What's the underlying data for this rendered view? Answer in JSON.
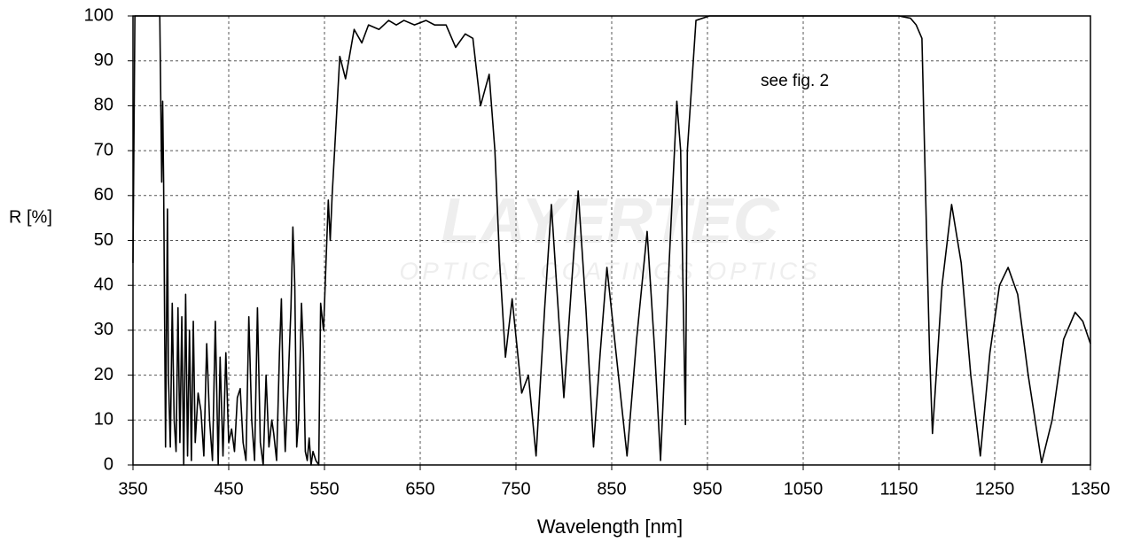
{
  "chart_data": {
    "type": "line",
    "x_label": "Wavelength [nm]",
    "y_label": "R [%]",
    "annotation": "see fig. 2",
    "watermark": [
      "LAYERTEC",
      "OPTICAL COATINGS OPTICS"
    ],
    "xlim": [
      350,
      1350
    ],
    "ylim": [
      0,
      100
    ],
    "xticks": [
      350,
      450,
      550,
      650,
      750,
      850,
      950,
      1050,
      1150,
      1250,
      1350
    ],
    "yticks": [
      0,
      10,
      20,
      30,
      40,
      50,
      60,
      70,
      80,
      90,
      100
    ],
    "grid": true,
    "series": [
      {
        "color": "#000000",
        "x": [
          350,
          352,
          378,
          380,
          381,
          382,
          384,
          386,
          387,
          389,
          391,
          393,
          395,
          397,
          399,
          401,
          403,
          405,
          407,
          409,
          411,
          413,
          415,
          418,
          421,
          424,
          427,
          430,
          433,
          436,
          439,
          441,
          444,
          447,
          450,
          453,
          456,
          459,
          462,
          465,
          468,
          471,
          474,
          477,
          480,
          483,
          486,
          489,
          492,
          495,
          497,
          500,
          503,
          505,
          507,
          509,
          512,
          515,
          517,
          519,
          521,
          523,
          526,
          528,
          530,
          532,
          534,
          536,
          538,
          541,
          544,
          546,
          549,
          554,
          556,
          558,
          566,
          572,
          581,
          589,
          596,
          607,
          617,
          625,
          633,
          644,
          656,
          665,
          677,
          687,
          697,
          705,
          713,
          722,
          728,
          733,
          739,
          746,
          756,
          763,
          771,
          780,
          787,
          794,
          800,
          808,
          815,
          823,
          831,
          838,
          845,
          856,
          866,
          876,
          887,
          895,
          901,
          910,
          918,
          922,
          927,
          929,
          938,
          952,
          1150,
          1162,
          1168,
          1174,
          1179,
          1182,
          1185,
          1195,
          1205,
          1215,
          1225,
          1235,
          1245,
          1255,
          1264,
          1274,
          1285,
          1299,
          1310,
          1322,
          1334,
          1342,
          1350
        ],
        "values": [
          45,
          100,
          100,
          63,
          81,
          63,
          4,
          57,
          20,
          4,
          36,
          10,
          3,
          35,
          5,
          33,
          0,
          38,
          2,
          30,
          1,
          32,
          5,
          16,
          12,
          2,
          27,
          10,
          1,
          32,
          0,
          24,
          2,
          25,
          5,
          8,
          3,
          15,
          17,
          5,
          1,
          33,
          10,
          1,
          35,
          5,
          0,
          20,
          4,
          10,
          7,
          1,
          25,
          37,
          15,
          3,
          18,
          35,
          53,
          40,
          4,
          10,
          36,
          25,
          3,
          1,
          6,
          0,
          3,
          1,
          0,
          36,
          30,
          59,
          50,
          60,
          91,
          86,
          97,
          94,
          98,
          97,
          99,
          98,
          99,
          98,
          99,
          98,
          98,
          93,
          96,
          95,
          80,
          87,
          70,
          45,
          24,
          37,
          16,
          20,
          2,
          35,
          58,
          35,
          15,
          40,
          61,
          35,
          4,
          25,
          44,
          22,
          2,
          28,
          52,
          25,
          1,
          45,
          81,
          70,
          9,
          70,
          99,
          100,
          100,
          99.5,
          98,
          95,
          50,
          25,
          7,
          40,
          58,
          45,
          20,
          2,
          25,
          40,
          44,
          38,
          20,
          0.5,
          10,
          28,
          34,
          32,
          27
        ]
      }
    ]
  }
}
